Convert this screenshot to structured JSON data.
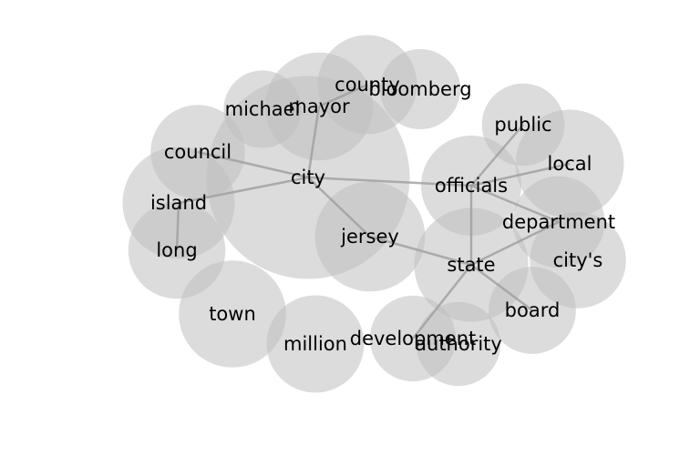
{
  "chart_data": {
    "type": "network",
    "title": "",
    "nodes": [
      {
        "id": "city",
        "label": "city",
        "size": 4.6
      },
      {
        "id": "mayor",
        "label": "mayor",
        "size": 1.3
      },
      {
        "id": "county",
        "label": "county",
        "size": 1.1
      },
      {
        "id": "bloomberg",
        "label": "bloomberg",
        "size": 0.72
      },
      {
        "id": "michael",
        "label": "michael",
        "size": 0.67
      },
      {
        "id": "council",
        "label": "council",
        "size": 0.99
      },
      {
        "id": "island",
        "label": "island",
        "size": 1.4
      },
      {
        "id": "long",
        "label": "long",
        "size": 1.05
      },
      {
        "id": "town",
        "label": "town",
        "size": 1.28
      },
      {
        "id": "million",
        "label": "million",
        "size": 1.06
      },
      {
        "id": "jersey",
        "label": "jersey",
        "size": 1.35
      },
      {
        "id": "public",
        "label": "public",
        "size": 0.76
      },
      {
        "id": "local",
        "label": "local",
        "size": 1.31
      },
      {
        "id": "officials",
        "label": "officials",
        "size": 1.12
      },
      {
        "id": "department",
        "label": "department",
        "size": 0.94
      },
      {
        "id": "citys",
        "label": "city's",
        "size": 1.03
      },
      {
        "id": "state",
        "label": "state",
        "size": 1.45
      },
      {
        "id": "board",
        "label": "board",
        "size": 0.85
      },
      {
        "id": "development",
        "label": "development",
        "size": 0.82
      },
      {
        "id": "authority",
        "label": "authority",
        "size": 0.79
      }
    ],
    "edges": [
      [
        "city",
        "mayor"
      ],
      [
        "city",
        "council"
      ],
      [
        "city",
        "island"
      ],
      [
        "city",
        "jersey"
      ],
      [
        "city",
        "officials"
      ],
      [
        "mayor",
        "county"
      ],
      [
        "island",
        "long"
      ],
      [
        "jersey",
        "state"
      ],
      [
        "officials",
        "public"
      ],
      [
        "officials",
        "local"
      ],
      [
        "officials",
        "department"
      ],
      [
        "officials",
        "state"
      ],
      [
        "state",
        "department"
      ],
      [
        "state",
        "board"
      ],
      [
        "state",
        "development"
      ]
    ]
  }
}
